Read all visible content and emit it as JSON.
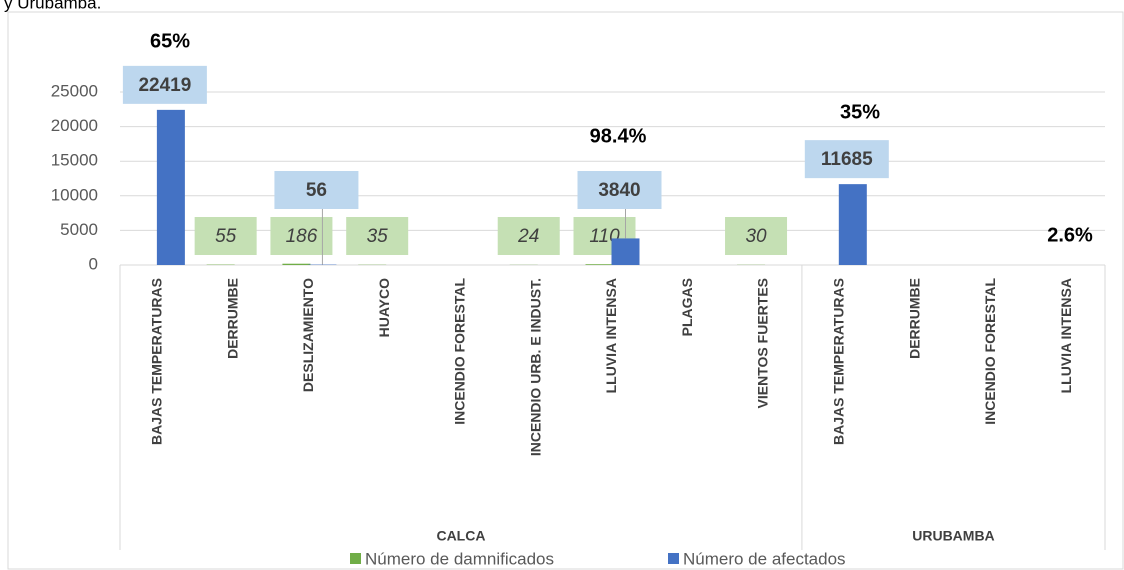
{
  "chart_data": {
    "type": "bar",
    "caption": "y Urubamba.",
    "groups": [
      {
        "name": "CALCA",
        "categories": [
          "BAJAS TEMPERATURAS",
          "DERRUMBE",
          "DESLIZAMIENTO",
          "HUAYCO",
          "INCENDIO FORESTAL",
          "INCENDIO URB. E INDUST.",
          "LLUVIA INTENSA",
          "PLAGAS",
          "VIENTOS FUERTES"
        ]
      },
      {
        "name": "URUBAMBA",
        "categories": [
          "BAJAS TEMPERATURAS",
          "DERRUMBE",
          "INCENDIO FORESTAL",
          "LLUVIA INTENSA"
        ]
      }
    ],
    "series": [
      {
        "name": "Número de damnificados",
        "color": "#70ad47",
        "label_bg": "#c5e0b4",
        "values": [
          null,
          55,
          186,
          35,
          null,
          24,
          110,
          null,
          30,
          null,
          null,
          null,
          null
        ]
      },
      {
        "name": "Número de afectados",
        "color": "#4472c4",
        "label_bg": "#bdd7ee",
        "values": [
          22419,
          null,
          56,
          null,
          null,
          null,
          3840,
          null,
          null,
          11685,
          null,
          null,
          null
        ]
      }
    ],
    "annotations": [
      "65%",
      "98.4%",
      "35%",
      "2.6%"
    ],
    "ylim": [
      0,
      25000
    ],
    "yticks": [
      0,
      5000,
      10000,
      15000,
      20000,
      25000
    ],
    "grid": true,
    "legend": "bottom"
  }
}
